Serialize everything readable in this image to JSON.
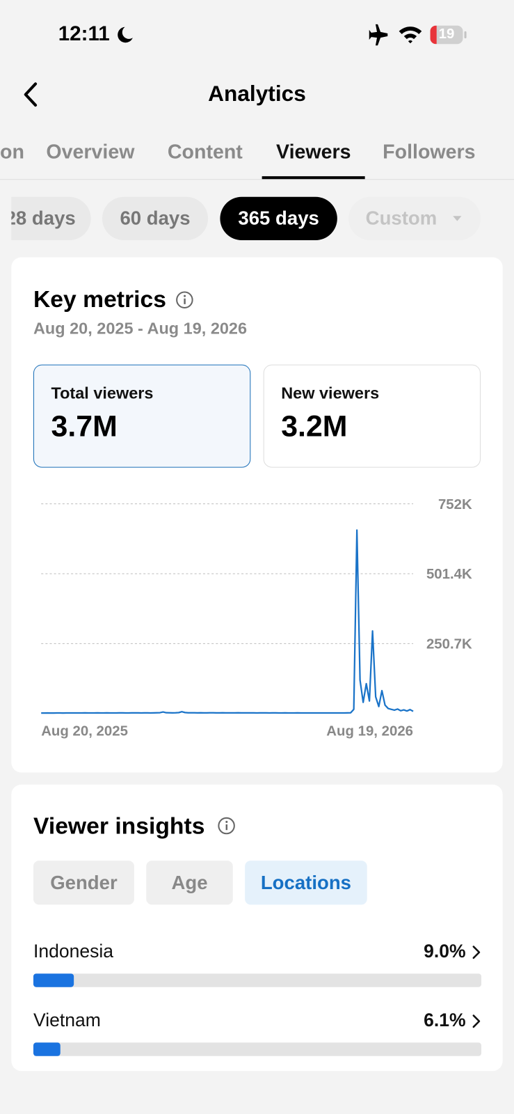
{
  "status_bar": {
    "time": "12:11",
    "battery": "19"
  },
  "header": {
    "title": "Analytics"
  },
  "tabs": [
    {
      "label": "on"
    },
    {
      "label": "Overview"
    },
    {
      "label": "Content"
    },
    {
      "label": "Viewers",
      "selected": true
    },
    {
      "label": "Followers"
    }
  ],
  "periods": [
    {
      "label": "28 days"
    },
    {
      "label": "60 days"
    },
    {
      "label": "365 days",
      "selected": true
    },
    {
      "label": "Custom",
      "disabled": true
    }
  ],
  "key_metrics": {
    "title": "Key metrics",
    "date_range": "Aug 20, 2025 - Aug 19, 2026",
    "cards": [
      {
        "label": "Total viewers",
        "value": "3.7M",
        "selected": true
      },
      {
        "label": "New viewers",
        "value": "3.2M"
      }
    ]
  },
  "chart_data": {
    "type": "line",
    "color": "#1a73c8",
    "grid": true,
    "categories": [
      "Aug 20, 2025",
      null,
      null,
      null,
      null,
      null,
      null,
      null,
      null,
      null,
      null,
      null,
      null,
      null,
      null,
      null,
      null,
      null,
      null,
      null,
      null,
      null,
      null,
      null,
      null,
      null,
      null,
      null,
      null,
      null,
      null,
      null,
      null,
      null,
      null,
      null,
      null,
      null,
      null,
      null,
      null,
      null,
      null,
      null,
      null,
      null,
      null,
      null,
      null,
      null,
      null,
      null,
      null,
      null,
      null,
      null,
      null,
      null,
      null,
      null,
      null,
      null,
      null,
      null,
      null,
      null,
      null,
      null,
      null,
      null,
      null,
      null,
      null,
      null,
      null,
      null,
      null,
      null,
      null,
      null,
      null,
      null,
      null,
      null,
      null,
      null,
      null,
      null,
      null,
      null,
      null,
      null,
      null,
      null,
      null,
      null,
      null,
      null,
      null,
      null,
      null,
      null,
      null,
      null,
      null,
      null,
      null,
      null,
      null,
      null,
      null,
      null,
      null,
      null,
      null,
      null,
      null,
      null,
      null,
      "Aug 19, 2026"
    ],
    "values": [
      1500,
      1600,
      1800,
      1700,
      1600,
      2000,
      1900,
      1700,
      1800,
      1900,
      2100,
      2000,
      1800,
      1900,
      2200,
      2000,
      1900,
      2100,
      2300,
      2000,
      2100,
      2200,
      2000,
      1900,
      2100,
      2300,
      2200,
      2100,
      2000,
      2200,
      2400,
      2300,
      2100,
      2200,
      2300,
      2100,
      2400,
      2600,
      3000,
      5500,
      2800,
      2500,
      2400,
      2600,
      3200,
      6500,
      3500,
      2700,
      2500,
      2600,
      2400,
      2500,
      2300,
      2400,
      2600,
      2500,
      2400,
      2300,
      2500,
      2400,
      2300,
      2200,
      2400,
      2500,
      2300,
      2200,
      2400,
      2300,
      2200,
      2100,
      2300,
      2400,
      2200,
      2100,
      2300,
      2200,
      2100,
      2000,
      2200,
      2100,
      2000,
      2100,
      2200,
      2000,
      1900,
      2100,
      2000,
      1900,
      2000,
      2100,
      1900,
      2000,
      2100,
      2000,
      1900,
      2000,
      2100,
      2000,
      2200,
      2500,
      15000,
      658000,
      120000,
      40000,
      107000,
      45000,
      296000,
      60000,
      25000,
      82000,
      30000,
      18000,
      15000,
      12000,
      16000,
      10000,
      13000,
      9000,
      14000,
      8000
    ],
    "ylim": [
      0,
      752000
    ],
    "yticks": [
      {
        "value": 250700,
        "label": "250.7K"
      },
      {
        "value": 501400,
        "label": "501.4K"
      },
      {
        "value": 752000,
        "label": "752K"
      }
    ]
  },
  "viewer_insights": {
    "title": "Viewer insights",
    "tabs": [
      {
        "label": "Gender"
      },
      {
        "label": "Age"
      },
      {
        "label": "Locations",
        "selected": true
      }
    ],
    "xlim": [
      0,
      100
    ],
    "locations": [
      {
        "name": "Indonesia",
        "value": 9.0,
        "value_label": "9.0%"
      },
      {
        "name": "Vietnam",
        "value": 6.1,
        "value_label": "6.1%"
      }
    ]
  }
}
